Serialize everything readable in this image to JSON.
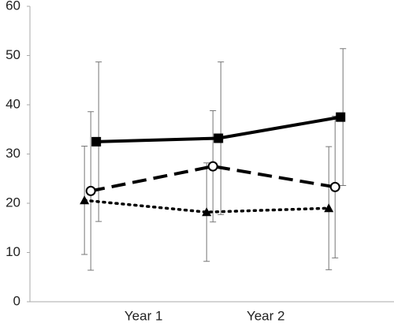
{
  "chart_data": {
    "type": "line",
    "x": [
      1,
      2,
      3
    ],
    "xlim": [
      0.47,
      3.45
    ],
    "xticks": [
      {
        "value": 1.4,
        "label": "Year 1"
      },
      {
        "value": 2.4,
        "label": "Year 2"
      }
    ],
    "ylim": [
      0,
      60
    ],
    "yticks": [
      0,
      10,
      20,
      30,
      40,
      50,
      60
    ],
    "grid": false,
    "series": [
      {
        "color": "#000000",
        "dash": "solid",
        "marker": "square",
        "values": [
          32.5,
          33.2,
          37.5
        ],
        "errors": [
          16.2,
          15.5,
          13.9
        ]
      },
      {
        "color": "#000000",
        "dash": "dashed",
        "marker": "open-circle",
        "values": [
          22.5,
          27.5,
          23.3
        ],
        "errors": [
          16.1,
          11.3,
          14.4
        ]
      },
      {
        "color": "#000000",
        "dash": "dotted",
        "marker": "triangle",
        "values": [
          20.6,
          18.2,
          19.0
        ],
        "errors": [
          11.0,
          10.0,
          12.5
        ]
      }
    ]
  }
}
